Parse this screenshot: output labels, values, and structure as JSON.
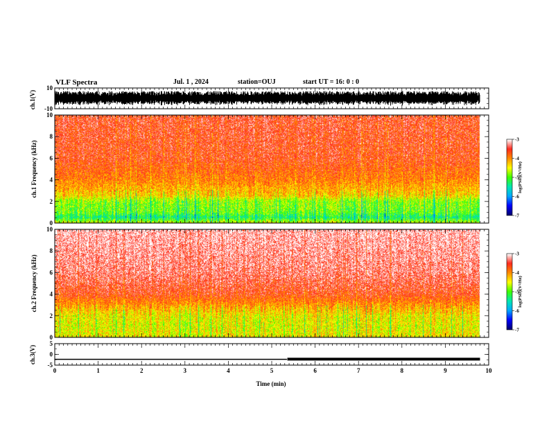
{
  "header": {
    "title": "VLF Spectra",
    "date": "Jul. 1 , 2024",
    "station": "station=OUJ",
    "start_ut": "start UT = 16: 0 : 0"
  },
  "chart_data": [
    {
      "type": "line",
      "panel": "waveform-ch1",
      "ylabel": "ch.1(V)",
      "ylim": [
        -10,
        10
      ],
      "y_ticks": [
        "10",
        "-10"
      ],
      "xlim": [
        0,
        10
      ],
      "trace_range_approx": [
        -7,
        7
      ],
      "color": "#000000"
    },
    {
      "type": "heatmap",
      "panel": "spectrogram-ch1",
      "ylabel": "ch.1 Frequency (kHz)",
      "ylim": [
        0,
        10
      ],
      "y_ticks": [
        "0",
        "2",
        "4",
        "6",
        "8",
        "10"
      ],
      "xlim": [
        0,
        10
      ],
      "data_end_min": 9.8,
      "colorbar": {
        "label": "log(PSD)(V²/Hz)",
        "range": [
          -7,
          -3
        ],
        "ticks": [
          "-3",
          "-4",
          "-5",
          "-6",
          "-7"
        ]
      },
      "psd_profile_by_freq_khz": [
        [
          0,
          -4.6
        ],
        [
          0.5,
          -5.3
        ],
        [
          1.0,
          -4.9
        ],
        [
          2.0,
          -4.8
        ],
        [
          2.5,
          -4.3
        ],
        [
          4.0,
          -3.9
        ],
        [
          6.0,
          -3.6
        ],
        [
          10.0,
          -3.5
        ]
      ]
    },
    {
      "type": "heatmap",
      "panel": "spectrogram-ch2",
      "ylabel": "ch.2 Frequency (kHz)",
      "ylim": [
        0,
        10
      ],
      "y_ticks": [
        "0",
        "2",
        "4",
        "6",
        "8",
        "10"
      ],
      "xlim": [
        0,
        10
      ],
      "data_end_min": 9.8,
      "colorbar": {
        "label": "log(PSD)(V²/Hz)",
        "range": [
          -7,
          -3
        ],
        "ticks": [
          "-3",
          "-4",
          "-5",
          "-6",
          "-7"
        ]
      },
      "psd_profile_by_freq_khz": [
        [
          0,
          -4.4
        ],
        [
          1.0,
          -4.5
        ],
        [
          2.0,
          -4.4
        ],
        [
          3.0,
          -4.0
        ],
        [
          4.0,
          -3.6
        ],
        [
          6.0,
          -3.3
        ],
        [
          10.0,
          -3.1
        ]
      ]
    },
    {
      "type": "line",
      "panel": "waveform-ch3",
      "ylabel": "ch.3(V)",
      "ylim": [
        -5,
        5
      ],
      "y_ticks": [
        "5",
        "0",
        "-5"
      ],
      "xlim": [
        0,
        10
      ],
      "xlabel": "Time (min)",
      "x_ticks": [
        "0",
        "1",
        "2",
        "3",
        "4",
        "5",
        "6",
        "7",
        "8",
        "9",
        "10"
      ],
      "x": [
        0,
        5.35,
        5.36,
        9.8
      ],
      "y": [
        -2.3,
        -2.3,
        -2.2,
        -2.2
      ],
      "note_thick_after_min": 5.35
    }
  ],
  "colors": {
    "colormap": [
      "#000070",
      "#0000ff",
      "#00a8ff",
      "#00e6b4",
      "#3cff00",
      "#ffff00",
      "#ff8c00",
      "#ff2a1e",
      "#ffffff"
    ]
  }
}
